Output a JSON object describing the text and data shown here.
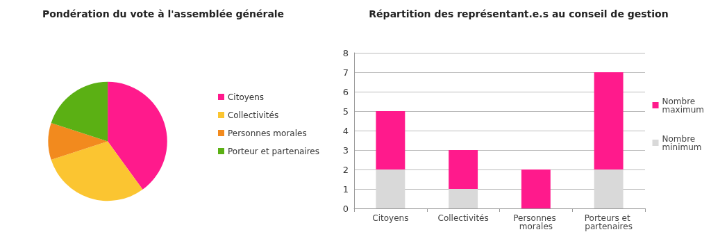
{
  "chart_data": [
    {
      "type": "pie",
      "title": "Pondération du vote à l'assemblée générale",
      "categories": [
        "Citoyens",
        "Collectivités",
        "Personnes morales",
        "Porteur et partenaires"
      ],
      "values": [
        40,
        30,
        10,
        20
      ],
      "colors": [
        "#ff1a8c",
        "#fbc531",
        "#f28a1e",
        "#5bb014"
      ],
      "legend": "right"
    },
    {
      "type": "bar",
      "title": "Répartition des représentant.e.s au conseil de gestion",
      "categories": [
        "Citoyens",
        "Collectivités",
        "Personnes morales",
        "Porteurs et partenaires"
      ],
      "stacked": true,
      "series": [
        {
          "name": "Nombre minimum",
          "color": "#d9d9d9",
          "values": [
            2,
            1,
            0,
            2
          ]
        },
        {
          "name": "Nombre maximum",
          "color": "#ff1a8c",
          "values": [
            3,
            2,
            2,
            5
          ]
        }
      ],
      "ylim": [
        0,
        8
      ],
      "yticks": [
        0,
        1,
        2,
        3,
        4,
        5,
        6,
        7,
        8
      ],
      "grid": "y",
      "legend": "right"
    }
  ]
}
